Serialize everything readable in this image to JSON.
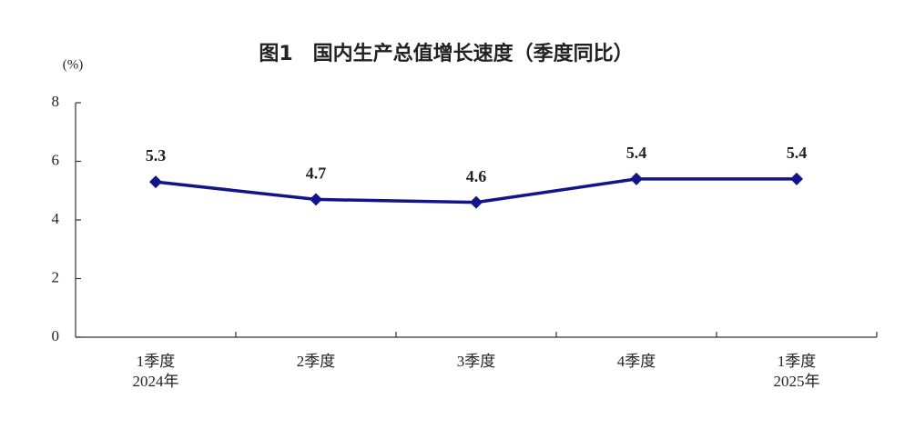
{
  "chart_data": {
    "type": "line",
    "title": "图1　国内生产总值增长速度（季度同比）",
    "y_unit": "(%)",
    "categories": [
      "1季度\n2024年",
      "2季度",
      "3季度",
      "4季度",
      "1季度\n2025年"
    ],
    "values": [
      5.3,
      4.7,
      4.6,
      5.4,
      5.4
    ],
    "color": "#14148a",
    "ylim": [
      0,
      8
    ],
    "yticks": [
      0,
      2,
      4,
      6,
      8
    ],
    "grid": false
  }
}
